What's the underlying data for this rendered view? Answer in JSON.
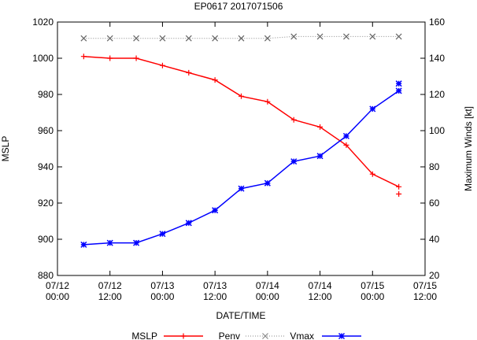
{
  "chart_data": {
    "type": "line",
    "title": "EP0617 2017071506",
    "xlabel": "DATE/TIME",
    "ylabel_left": "MSLP",
    "ylabel_right": "Maximum Winds [kt]",
    "x_ticks": [
      [
        "07/12",
        "00:00"
      ],
      [
        "07/12",
        "12:00"
      ],
      [
        "07/13",
        "00:00"
      ],
      [
        "07/13",
        "12:00"
      ],
      [
        "07/14",
        "00:00"
      ],
      [
        "07/14",
        "12:00"
      ],
      [
        "07/15",
        "00:00"
      ],
      [
        "07/15",
        "12:00"
      ]
    ],
    "x_range_hours": [
      0,
      84
    ],
    "y_left_range": [
      880,
      1020
    ],
    "y_left_ticks": [
      "880",
      "900",
      "920",
      "940",
      "960",
      "980",
      "1000",
      "1020"
    ],
    "y_right_range": [
      20,
      160
    ],
    "y_right_ticks": [
      "20",
      "40",
      "60",
      "80",
      "100",
      "120",
      "140",
      "160"
    ],
    "x_hours": [
      6,
      12,
      18,
      24,
      30,
      36,
      42,
      48,
      54,
      60,
      66,
      72,
      78
    ],
    "series": [
      {
        "name": "Penv",
        "axis": "left",
        "color": "#ff0000",
        "marker": "plus",
        "style": "dotted",
        "values": [
          1011,
          1011,
          1011,
          1011,
          1011,
          1011,
          1011,
          1011,
          1012,
          1012,
          1012,
          1012,
          1012
        ]
      },
      {
        "name": "MSLP",
        "axis": "left",
        "color": "#ff0000",
        "marker": "plus",
        "style": "solid",
        "values": [
          1001,
          1000,
          1000,
          996,
          992,
          988,
          979,
          976,
          966,
          962,
          952,
          936,
          929
        ],
        "extra_point": {
          "x": 78,
          "y": 925
        }
      },
      {
        "name": "Vmax",
        "axis": "right",
        "color": "#0000ff",
        "marker": "star",
        "style": "solid",
        "values": [
          37,
          38,
          38,
          43,
          49,
          56,
          68,
          71,
          83,
          86,
          97,
          112,
          122
        ],
        "extra_point": {
          "x": 78,
          "y": 126
        }
      }
    ],
    "legend": {
      "placement": "bottom",
      "items": [
        {
          "label": "MSLP",
          "color": "#ff0000",
          "style": "solid",
          "marker": "plus"
        },
        {
          "label": "Penv",
          "color": "#888888",
          "style": "dotted",
          "marker": "cross"
        },
        {
          "label": "Vmax",
          "color": "#0000ff",
          "style": "solid",
          "marker": "star"
        }
      ]
    },
    "grid": false
  }
}
